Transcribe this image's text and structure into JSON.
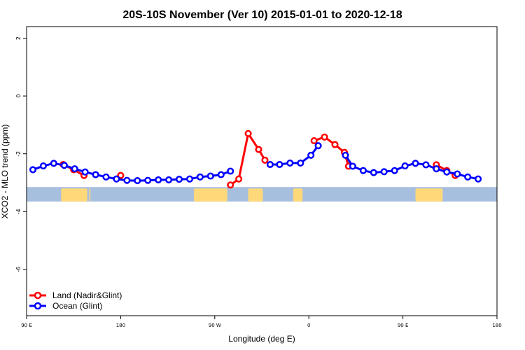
{
  "chart_data": {
    "type": "line",
    "title": "20S-10S November (Ver 10)   2015-01-01 to 2020-12-18",
    "xlabel": "Longitude (deg E)",
    "ylabel": "XCO2 - MLO trend (ppm)",
    "xlim": [
      90,
      540
    ],
    "ylim": [
      -7.6,
      2.4
    ],
    "x_ticks": [
      {
        "value": 90,
        "label": "90 E"
      },
      {
        "value": 180,
        "label": "180"
      },
      {
        "value": 270,
        "label": "90 W"
      },
      {
        "value": 360,
        "label": "0"
      },
      {
        "value": 450,
        "label": "90 E"
      },
      {
        "value": 540,
        "label": "180"
      }
    ],
    "y_ticks": [
      {
        "value": 2,
        "label": "2"
      },
      {
        "value": 0,
        "label": "0"
      },
      {
        "value": -2,
        "label": "-2"
      },
      {
        "value": -4,
        "label": "-4"
      },
      {
        "value": -6,
        "label": "-6"
      }
    ],
    "legend": {
      "position": "bottom-left",
      "entries": [
        "Land (Nadir&Glint)",
        "Ocean (Glint)"
      ]
    },
    "colors": {
      "land": "#ff0000",
      "ocean": "#0000ff",
      "band_ocean": "#a7bfdf",
      "band_land": "#ffd87a"
    },
    "land_band": {
      "y_range": [
        -3.15,
        -3.65
      ],
      "segments": [
        [
          123,
          148
        ],
        [
          150,
          151
        ],
        [
          250,
          282
        ],
        [
          302,
          316
        ],
        [
          345,
          354
        ],
        [
          462,
          488
        ]
      ]
    },
    "series": [
      {
        "name": "Land (Nadir&Glint)",
        "color": "#ff0000",
        "segments": [
          [
            [
              125,
              -2.37
            ],
            [
              135,
              -2.55
            ],
            [
              145,
              -2.75
            ]
          ],
          [
            [
              180,
              -2.75
            ]
          ],
          [
            [
              285,
              -3.08
            ],
            [
              293,
              -2.87
            ],
            [
              302,
              -1.3
            ],
            [
              312,
              -1.85
            ],
            [
              318,
              -2.22
            ]
          ],
          [
            [
              365,
              -1.55
            ],
            [
              375,
              -1.42
            ],
            [
              385,
              -1.68
            ],
            [
              394,
              -1.95
            ],
            [
              398,
              -2.43
            ]
          ],
          [
            [
              482,
              -2.38
            ],
            [
              492,
              -2.58
            ],
            [
              500,
              -2.75
            ]
          ]
        ]
      },
      {
        "name": "Ocean (Glint)",
        "color": "#0000ff",
        "segments": [
          [
            [
              96,
              -2.55
            ],
            [
              106,
              -2.42
            ],
            [
              116,
              -2.33
            ],
            [
              126,
              -2.4
            ],
            [
              136,
              -2.52
            ],
            [
              146,
              -2.63
            ],
            [
              156,
              -2.72
            ],
            [
              166,
              -2.8
            ],
            [
              176,
              -2.87
            ],
            [
              186,
              -2.92
            ],
            [
              196,
              -2.93
            ],
            [
              206,
              -2.92
            ],
            [
              216,
              -2.9
            ],
            [
              226,
              -2.9
            ],
            [
              236,
              -2.88
            ],
            [
              246,
              -2.87
            ],
            [
              256,
              -2.8
            ],
            [
              266,
              -2.77
            ],
            [
              276,
              -2.72
            ],
            [
              285,
              -2.6
            ]
          ],
          [
            [
              323,
              -2.37
            ],
            [
              332,
              -2.37
            ],
            [
              342,
              -2.32
            ],
            [
              352,
              -2.32
            ],
            [
              362,
              -2.05
            ],
            [
              369,
              -1.72
            ]
          ],
          [
            [
              395,
              -2.05
            ],
            [
              402,
              -2.43
            ],
            [
              412,
              -2.58
            ],
            [
              422,
              -2.65
            ],
            [
              432,
              -2.62
            ],
            [
              442,
              -2.58
            ],
            [
              452,
              -2.42
            ],
            [
              462,
              -2.33
            ],
            [
              472,
              -2.38
            ],
            [
              482,
              -2.52
            ],
            [
              492,
              -2.63
            ],
            [
              502,
              -2.7
            ],
            [
              512,
              -2.8
            ],
            [
              522,
              -2.87
            ]
          ]
        ]
      }
    ]
  }
}
